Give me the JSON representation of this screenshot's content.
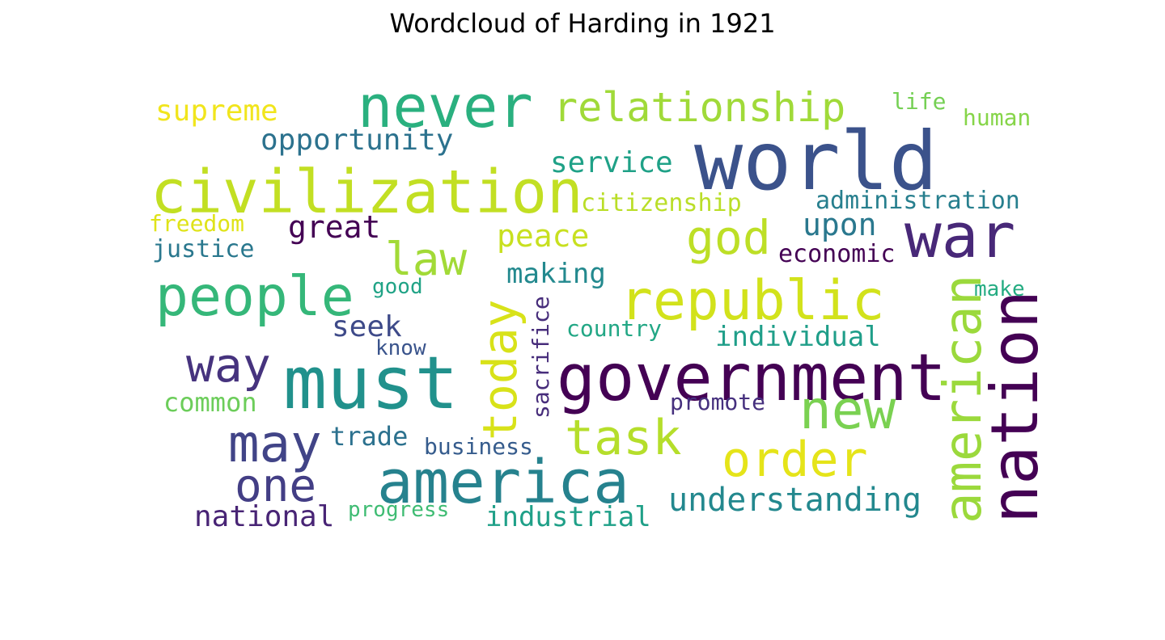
{
  "chart_data": {
    "type": "wordcloud",
    "title": "Wordcloud of Harding in 1921",
    "words": [
      {
        "text": "world",
        "color": "#3b528b"
      },
      {
        "text": "must",
        "color": "#21918c"
      },
      {
        "text": "government",
        "color": "#440154"
      },
      {
        "text": "civilization",
        "color": "#c2df23"
      },
      {
        "text": "never",
        "color": "#2ab07f"
      },
      {
        "text": "war",
        "color": "#482878"
      },
      {
        "text": "america",
        "color": "#26828e"
      },
      {
        "text": "nation",
        "color": "#440154"
      },
      {
        "text": "people",
        "color": "#35b779"
      },
      {
        "text": "republic",
        "color": "#d2e21b"
      },
      {
        "text": "american",
        "color": "#9bd93c"
      },
      {
        "text": "relationship",
        "color": "#a0da39"
      },
      {
        "text": "new",
        "color": "#7ad151"
      },
      {
        "text": "may",
        "color": "#414487"
      },
      {
        "text": "order",
        "color": "#e5e419"
      },
      {
        "text": "today",
        "color": "#d8e219"
      },
      {
        "text": "task",
        "color": "#b5de2b"
      },
      {
        "text": "god",
        "color": "#bddf26"
      },
      {
        "text": "law",
        "color": "#a2da37"
      },
      {
        "text": "way",
        "color": "#46337e"
      },
      {
        "text": "one",
        "color": "#433e85"
      },
      {
        "text": "understanding",
        "color": "#23888e"
      },
      {
        "text": "opportunity",
        "color": "#2c728e"
      },
      {
        "text": "supreme",
        "color": "#f1e51d"
      },
      {
        "text": "peace",
        "color": "#c8e020"
      },
      {
        "text": "great",
        "color": "#440154"
      },
      {
        "text": "upon",
        "color": "#2a788e"
      },
      {
        "text": "service",
        "color": "#1fa187"
      },
      {
        "text": "administration",
        "color": "#277f8e"
      },
      {
        "text": "citizenship",
        "color": "#bade28"
      },
      {
        "text": "making",
        "color": "#23898e"
      },
      {
        "text": "individual",
        "color": "#1f9e89"
      },
      {
        "text": "seek",
        "color": "#3e4a89"
      },
      {
        "text": "national",
        "color": "#482475"
      },
      {
        "text": "industrial",
        "color": "#1fa088"
      },
      {
        "text": "economic",
        "color": "#440154"
      },
      {
        "text": "sacrifice",
        "color": "#472d7b"
      },
      {
        "text": "common",
        "color": "#6ccd5a"
      },
      {
        "text": "trade",
        "color": "#2c718e"
      },
      {
        "text": "freedom",
        "color": "#dfe318"
      },
      {
        "text": "justice",
        "color": "#2a788e"
      },
      {
        "text": "life",
        "color": "#75d054"
      },
      {
        "text": "human",
        "color": "#86d549"
      },
      {
        "text": "promote",
        "color": "#46307e"
      },
      {
        "text": "country",
        "color": "#22a785"
      },
      {
        "text": "business",
        "color": "#365c8d"
      },
      {
        "text": "progress",
        "color": "#3fbc73"
      },
      {
        "text": "good",
        "color": "#20a386"
      },
      {
        "text": "make",
        "color": "#25ac82"
      },
      {
        "text": "know",
        "color": "#3a548c"
      }
    ]
  }
}
